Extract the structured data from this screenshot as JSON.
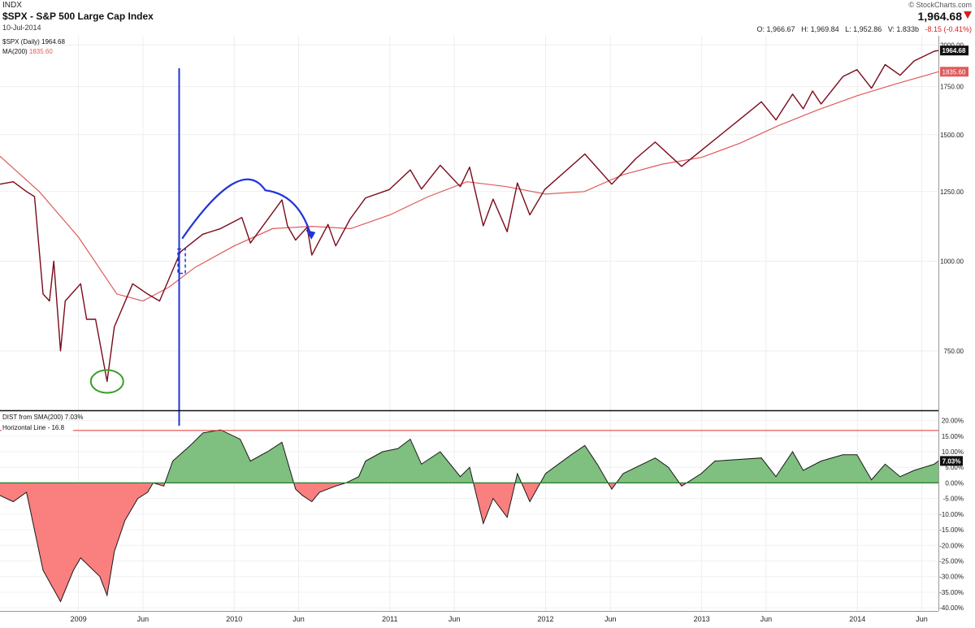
{
  "header": {
    "exchange": "INDX",
    "title": "$SPX - S&P 500 Large Cap Index",
    "date": "10-Jul-2014",
    "brand": "© StockCharts.com",
    "last_price": "1,964.68",
    "open_label": "O:",
    "open": "1,966.67",
    "high_label": "H:",
    "high": "1,969.84",
    "low_label": "L:",
    "low": "1,952.86",
    "volume_label": "V:",
    "volume": "1.833b",
    "change": "-8.15 (-0.41%)"
  },
  "colors": {
    "price_line": "#7a0a1a",
    "ma_line": "#e05a5a",
    "annotation_blue": "#1f35d8",
    "annotation_green": "#3e9b2e",
    "area_positive": "#7fbf7f",
    "area_negative": "#fa7f7f",
    "hline": "#e03030"
  },
  "chart_data": [
    {
      "type": "line",
      "legend": [
        {
          "label": "$SPX (Daily) 1964.68"
        },
        {
          "label": "MA(200)",
          "value": "1835.60"
        }
      ],
      "y_scale": "log",
      "ylim": [
        620,
        2060
      ],
      "y_ticks": [
        "2000.00",
        "1750.00",
        "1500.00",
        "1250.00",
        "1000.00",
        "750.00"
      ],
      "y_tick_values": [
        2000,
        1750,
        1500,
        1250,
        1000,
        750
      ],
      "last_labels": {
        "price": "1964.68",
        "ma": "1835.60"
      },
      "x_ticks": [
        "2009",
        "Jun",
        "2010",
        "Jun",
        "2011",
        "Jun",
        "2012",
        "Jun",
        "2013",
        "Jun",
        "2014",
        "Jun"
      ],
      "x_tick_dates": [
        "2009-01-01",
        "2009-06-01",
        "2010-01-01",
        "2010-06-01",
        "2011-01-01",
        "2011-06-01",
        "2012-01-01",
        "2012-06-01",
        "2013-01-01",
        "2013-06-01",
        "2014-01-01",
        "2014-06-01"
      ],
      "date_range": [
        "2008-07-01",
        "2014-07-10"
      ],
      "series": [
        {
          "name": "$SPX (Daily)",
          "x": [
            "2008-07-01",
            "2008-08-01",
            "2008-09-01",
            "2008-09-20",
            "2008-10-10",
            "2008-10-25",
            "2008-11-04",
            "2008-11-20",
            "2008-12-01",
            "2009-01-06",
            "2009-01-20",
            "2009-02-10",
            "2009-03-09",
            "2009-03-26",
            "2009-05-08",
            "2009-06-12",
            "2009-07-10",
            "2009-08-28",
            "2009-10-19",
            "2009-11-30",
            "2010-01-19",
            "2010-02-08",
            "2010-04-23",
            "2010-05-06",
            "2010-05-25",
            "2010-06-21",
            "2010-07-02",
            "2010-08-09",
            "2010-08-27",
            "2010-09-30",
            "2010-11-05",
            "2010-12-31",
            "2011-02-18",
            "2011-03-16",
            "2011-04-29",
            "2011-06-15",
            "2011-07-07",
            "2011-08-08",
            "2011-08-31",
            "2011-10-03",
            "2011-10-27",
            "2011-11-25",
            "2011-12-30",
            "2012-04-02",
            "2012-06-04",
            "2012-07-31",
            "2012-09-14",
            "2012-11-15",
            "2012-12-31",
            "2013-03-28",
            "2013-05-21",
            "2013-06-24",
            "2013-08-02",
            "2013-08-27",
            "2013-09-18",
            "2013-10-08",
            "2013-11-28",
            "2013-12-31",
            "2014-02-03",
            "2014-03-07",
            "2014-04-11",
            "2014-05-14",
            "2014-06-30",
            "2014-07-10"
          ],
          "values": [
            1280,
            1290,
            1250,
            1230,
            900,
            880,
            1000,
            750,
            880,
            930,
            830,
            830,
            680,
            810,
            930,
            900,
            880,
            1030,
            1090,
            1110,
            1150,
            1060,
            1217,
            1120,
            1070,
            1115,
            1020,
            1125,
            1050,
            1145,
            1225,
            1258,
            1340,
            1260,
            1360,
            1270,
            1352,
            1120,
            1220,
            1099,
            1285,
            1160,
            1258,
            1410,
            1280,
            1390,
            1465,
            1355,
            1426,
            1570,
            1667,
            1573,
            1708,
            1630,
            1725,
            1655,
            1807,
            1848,
            1741,
            1878,
            1815,
            1900,
            1960,
            1964.68
          ]
        },
        {
          "name": "MA(200)",
          "x": [
            "2008-07-01",
            "2008-10-01",
            "2009-01-01",
            "2009-04-01",
            "2009-06-01",
            "2009-08-01",
            "2009-10-01",
            "2010-01-01",
            "2010-04-01",
            "2010-07-01",
            "2010-10-01",
            "2011-01-01",
            "2011-04-01",
            "2011-07-01",
            "2011-10-01",
            "2012-01-01",
            "2012-04-01",
            "2012-07-01",
            "2012-10-01",
            "2013-01-01",
            "2013-04-01",
            "2013-07-01",
            "2013-10-01",
            "2014-01-01",
            "2014-04-01",
            "2014-07-10"
          ],
          "values": [
            1400,
            1250,
            1080,
            900,
            880,
            920,
            980,
            1050,
            1110,
            1118,
            1110,
            1160,
            1230,
            1290,
            1270,
            1240,
            1250,
            1320,
            1365,
            1395,
            1460,
            1545,
            1625,
            1700,
            1765,
            1835.6
          ]
        }
      ]
    },
    {
      "type": "area",
      "legend": [
        {
          "label": "DIST from SMA(200)",
          "value": "7.03%"
        },
        {
          "label": "Horizontal Line - 16.8"
        }
      ],
      "ylim": [
        -41,
        23
      ],
      "y_ticks": [
        "20.00%",
        "15.00%",
        "10.00%",
        "5.00%",
        "0.00%",
        "-5.00%",
        "-10.00%",
        "-15.00%",
        "-20.00%",
        "-25.00%",
        "-30.00%",
        "-35.00%",
        "-40.00%"
      ],
      "y_tick_values": [
        20,
        15,
        10,
        5,
        0,
        -5,
        -10,
        -15,
        -20,
        -25,
        -30,
        -35,
        -40
      ],
      "horizontal_line": 16.8,
      "last_label": "7.03%",
      "series": [
        {
          "name": "DIST from SMA(200)",
          "x": [
            "2008-07-01",
            "2008-08-01",
            "2008-09-01",
            "2008-10-10",
            "2008-11-20",
            "2008-12-20",
            "2009-01-06",
            "2009-02-20",
            "2009-03-09",
            "2009-03-26",
            "2009-04-20",
            "2009-05-20",
            "2009-06-12",
            "2009-06-25",
            "2009-07-20",
            "2009-08-10",
            "2009-09-20",
            "2009-10-20",
            "2009-11-30",
            "2010-01-15",
            "2010-02-08",
            "2010-03-20",
            "2010-04-23",
            "2010-05-25",
            "2010-06-10",
            "2010-07-02",
            "2010-07-20",
            "2010-08-27",
            "2010-09-20",
            "2010-10-20",
            "2010-11-05",
            "2010-12-15",
            "2011-01-20",
            "2011-02-18",
            "2011-03-16",
            "2011-04-29",
            "2011-06-15",
            "2011-07-07",
            "2011-08-08",
            "2011-08-31",
            "2011-10-03",
            "2011-10-27",
            "2011-11-25",
            "2012-01-01",
            "2012-03-01",
            "2012-04-02",
            "2012-05-01",
            "2012-06-04",
            "2012-07-01",
            "2012-09-14",
            "2012-10-15",
            "2012-11-15",
            "2012-12-31",
            "2013-02-01",
            "2013-05-21",
            "2013-06-24",
            "2013-08-02",
            "2013-08-27",
            "2013-10-08",
            "2013-11-28",
            "2013-12-31",
            "2014-02-03",
            "2014-03-07",
            "2014-04-11",
            "2014-05-14",
            "2014-06-30",
            "2014-07-10"
          ],
          "values": [
            -4,
            -6,
            -3,
            -28,
            -38,
            -28,
            -24,
            -30,
            -36,
            -22,
            -12,
            -5,
            -3,
            0,
            -1,
            7,
            12,
            16,
            17,
            14,
            7,
            10,
            13,
            -2,
            -4,
            -6,
            -3,
            -1,
            0,
            2,
            7,
            10,
            11,
            14,
            6,
            10,
            2,
            5,
            -13,
            -5,
            -11,
            3,
            -6,
            3,
            9,
            12,
            6,
            -2,
            3,
            8,
            5,
            -1,
            3,
            7,
            8,
            2,
            10,
            4,
            7,
            9,
            9,
            1,
            6,
            2,
            4,
            6,
            7.03
          ]
        }
      ]
    }
  ],
  "annotations": [
    {
      "kind": "vertical-line",
      "date": "2009-08-25"
    },
    {
      "kind": "dashed-box",
      "date": "2009-08-28",
      "price": 1000
    },
    {
      "kind": "arc-arrow",
      "from_date": "2009-09-01",
      "from_price": 1075,
      "peak_date": "2010-03-15",
      "peak_price": 1255,
      "to_date": "2010-07-01",
      "to_price": 1080
    },
    {
      "kind": "circle",
      "date": "2009-03-09",
      "price": 680
    }
  ]
}
